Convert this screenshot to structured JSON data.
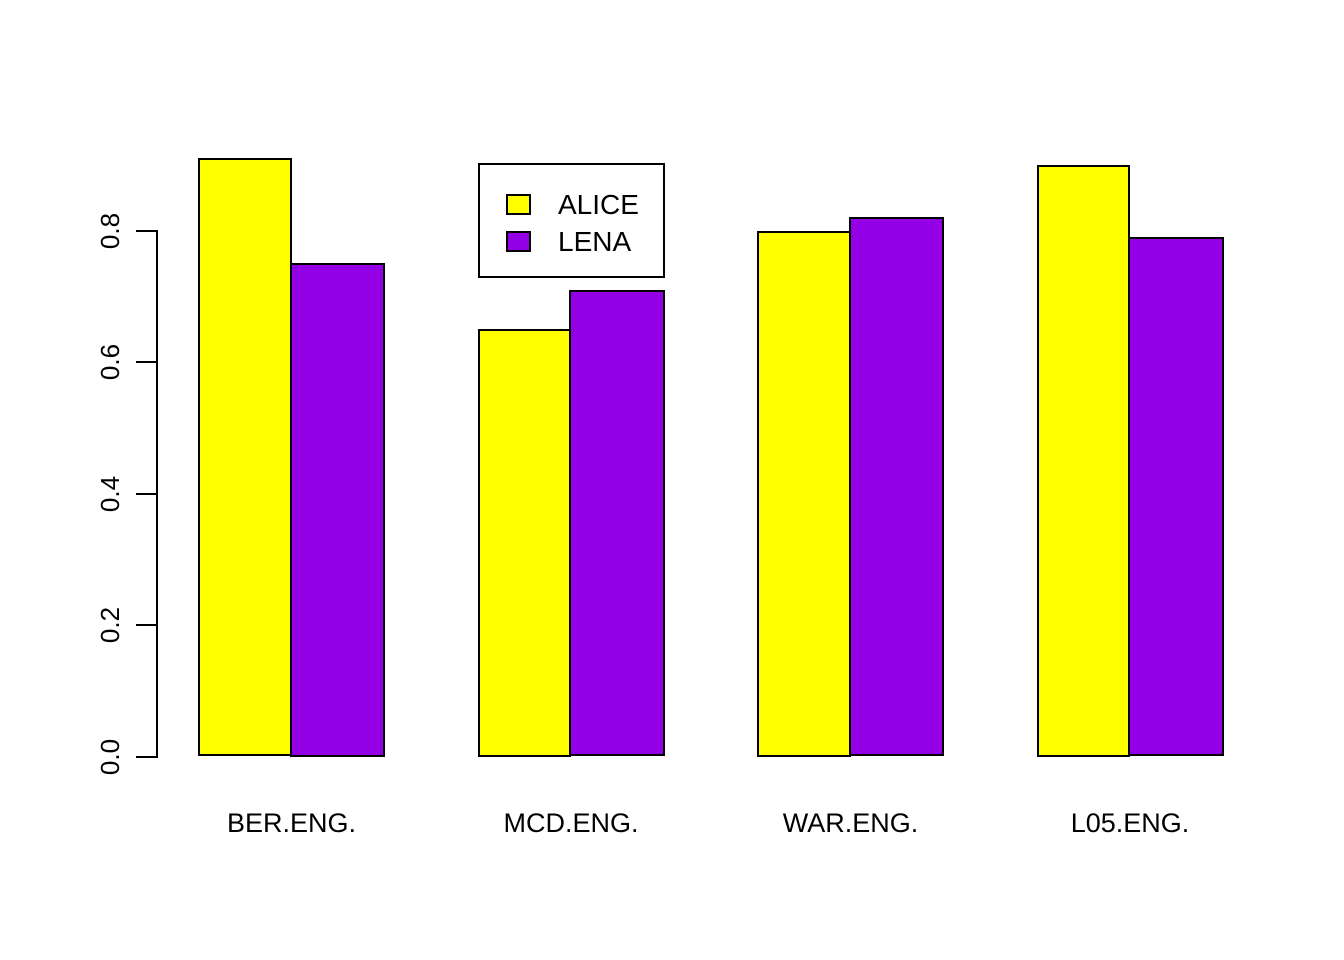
{
  "chart_data": {
    "type": "bar",
    "orientation": "vertical",
    "grouped": true,
    "categories": [
      "BER.ENG.",
      "MCD.ENG.",
      "WAR.ENG.",
      "L05.ENG."
    ],
    "series": [
      {
        "name": "ALICE",
        "color": "#FFFF00",
        "values": [
          0.91,
          0.65,
          0.8,
          0.9
        ]
      },
      {
        "name": "LENA",
        "color": "#9400E6",
        "values": [
          0.75,
          0.71,
          0.82,
          0.79
        ]
      }
    ],
    "title": "",
    "xlabel": "",
    "ylabel": "",
    "ylim": [
      0.0,
      0.8
    ],
    "yticks": [
      0.0,
      0.2,
      0.4,
      0.6,
      0.8
    ],
    "ytick_labels": [
      "0.0",
      "0.2",
      "0.4",
      "0.6",
      "0.8"
    ],
    "grid": false,
    "legend_position": "upper area, between first and second group",
    "background_color": "#FFFFFF",
    "bar_border_color": "#000000",
    "axis_color": "#000000"
  }
}
